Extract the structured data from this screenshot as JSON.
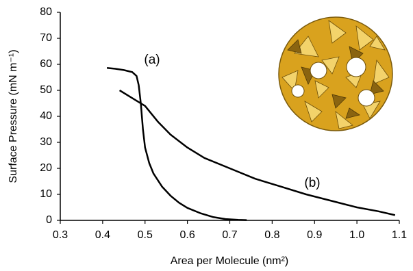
{
  "chart_data": {
    "type": "line",
    "xlabel": "Area per Molecule (nm²)",
    "ylabel": "Surface Pressure (mN m⁻¹)",
    "xlim": [
      0.3,
      1.1
    ],
    "xticks": [
      0.3,
      0.4,
      0.5,
      0.6,
      0.7,
      0.8,
      0.9,
      {
        "value": 1,
        "label": "1.0"
      },
      1.1
    ],
    "ylim": [
      0,
      80
    ],
    "yticks": [
      0,
      10,
      20,
      30,
      40,
      50,
      60,
      70,
      80
    ],
    "series": [
      {
        "name": "(a)",
        "color": "#000000",
        "x": [
          0.41,
          0.43,
          0.45,
          0.47,
          0.48,
          0.485,
          0.49,
          0.495,
          0.5,
          0.51,
          0.52,
          0.54,
          0.56,
          0.58,
          0.6,
          0.63,
          0.66,
          0.69,
          0.72,
          0.74
        ],
        "values": [
          58.6,
          58.3,
          57.8,
          57,
          55.5,
          52,
          45,
          35,
          28,
          22,
          18,
          13,
          9.5,
          6.8,
          4.8,
          2.8,
          1.3,
          0.5,
          0.2,
          0.1
        ]
      },
      {
        "name": "(b)",
        "color": "#000000",
        "x": [
          0.44,
          0.47,
          0.5,
          0.53,
          0.56,
          0.6,
          0.64,
          0.7,
          0.76,
          0.82,
          0.88,
          0.94,
          1.0,
          1.05,
          1.09
        ],
        "values": [
          50,
          47,
          44,
          38,
          33,
          28,
          24,
          20,
          16,
          13,
          10,
          7.5,
          5,
          3.5,
          2
        ]
      }
    ]
  }
}
